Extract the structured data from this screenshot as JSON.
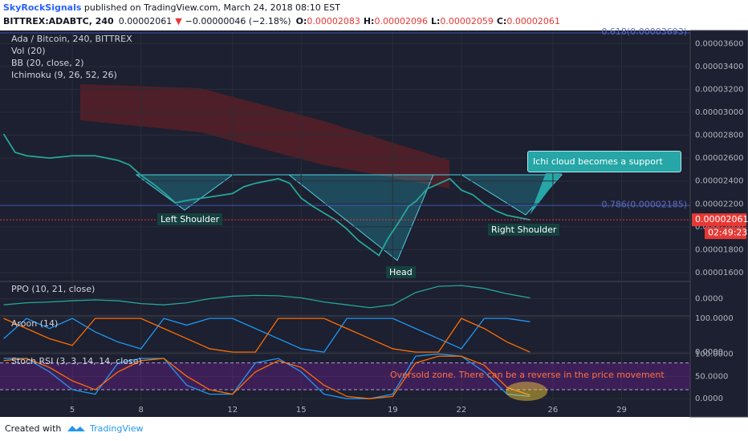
{
  "header": {
    "author": "SkyRockSignals",
    "published": " published on TradingView.com, March 24, 2018 08:10 EST",
    "symbol": "BITTREX:ADABTC, 240",
    "last": "0.00002061",
    "arrow": "▼",
    "change": "−0.00000046 (−2.18%)",
    "o_label": "O:",
    "o": "0.00002083",
    "h_label": "H:",
    "h": "0.00002096",
    "l_label": "L:",
    "l": "0.00002059",
    "c_label": "C:",
    "c": "0.00002061"
  },
  "chart_data": [
    {
      "type": "line",
      "title": "Ada / Bitcoin, 240, BITTREX",
      "indicators": [
        "Vol (20)",
        "BB (20, close, 2)",
        "Ichimoku (9, 26, 52, 26)"
      ],
      "x": [
        2,
        2.5,
        3,
        4,
        5,
        6,
        7,
        7.5,
        8,
        8.5,
        9,
        9.5,
        10,
        11,
        12,
        12.5,
        13,
        13.5,
        14,
        14.5,
        15,
        15.5,
        16,
        16.5,
        17,
        17.5,
        18.4,
        18.8,
        19.3,
        19.7,
        20,
        20.5,
        21.5,
        22,
        22.5,
        23,
        23.5,
        24,
        25
      ],
      "series": [
        {
          "color": "#26a69a",
          "values": [
            2.81e-05,
            2.65e-05,
            2.62e-05,
            2.6e-05,
            2.62e-05,
            2.62e-05,
            2.58e-05,
            2.54e-05,
            2.45e-05,
            2.38e-05,
            2.3e-05,
            2.21e-05,
            2.23e-05,
            2.26e-05,
            2.29e-05,
            2.35e-05,
            2.38e-05,
            2.4e-05,
            2.42e-05,
            2.38e-05,
            2.25e-05,
            2.18e-05,
            2.12e-05,
            2.06e-05,
            1.98e-05,
            1.88e-05,
            1.75e-05,
            1.9e-05,
            2.05e-05,
            2.18e-05,
            2.22e-05,
            2.33e-05,
            2.42e-05,
            2.32e-05,
            2.28e-05,
            2.2e-05,
            2.14e-05,
            2.1e-05,
            2.061e-05
          ]
        }
      ],
      "xlim": [
        1.84,
        32
      ],
      "xticks": [
        5,
        8,
        12,
        15,
        19,
        22,
        26,
        29
      ],
      "ylim": [
        1.53e-05,
        3.7e-05
      ],
      "yticks": [
        {
          "value": 1.6e-05,
          "label": "0.00001600"
        },
        {
          "value": 1.8e-05,
          "label": "0.00001800"
        },
        {
          "value": 2e-05,
          "label": "0.00002000"
        },
        {
          "value": 2.2e-05,
          "label": "0.00002200"
        },
        {
          "value": 2.4e-05,
          "label": "0.00002400"
        },
        {
          "value": 2.6e-05,
          "label": "0.00002600"
        },
        {
          "value": 2.8e-05,
          "label": "0.00002800"
        },
        {
          "value": 3e-05,
          "label": "0.00003000"
        },
        {
          "value": 3.2e-05,
          "label": "0.00003200"
        },
        {
          "value": 3.4e-05,
          "label": "0.00003400"
        },
        {
          "value": 3.6e-05,
          "label": "0.00003600"
        }
      ],
      "fib_levels": [
        {
          "value": 2.185e-05,
          "label": "0.786(0.00002185)"
        },
        {
          "value": 3.693e-05,
          "label": "0.618(0.00003693)"
        }
      ],
      "last_price": {
        "value": 2.061e-05,
        "label": "0.00002061"
      },
      "countdown": "02:49:23",
      "annotations": [
        "Left Shoulder",
        "Head",
        "Right Shoulder",
        "Ichi cloud becomes a support"
      ],
      "grid": true
    },
    {
      "type": "line",
      "title": "PPO (10, 21, close)",
      "x": [
        2,
        3,
        4,
        5,
        6,
        7,
        8,
        9,
        10,
        11,
        12,
        13,
        14,
        15,
        16,
        17,
        18,
        19,
        20,
        21,
        22,
        23,
        24,
        25
      ],
      "series": [
        {
          "color": "#26a69a",
          "values": [
            -1.5,
            -1,
            -0.8,
            -0.5,
            -0.3,
            -0.5,
            -1.2,
            -1.5,
            -1,
            0,
            0.6,
            0.8,
            0.7,
            0.2,
            -0.8,
            -1.5,
            -2.2,
            -1.5,
            1.5,
            3,
            3.2,
            2.5,
            1.2,
            0.2
          ]
        }
      ],
      "ylim": [
        -4,
        4
      ],
      "yticks": [
        {
          "value": 0,
          "label": "0.0000"
        }
      ]
    },
    {
      "type": "line",
      "title": "Aroon (14)",
      "x": [
        2,
        3,
        4,
        5,
        6,
        7,
        8,
        9,
        10,
        11,
        12,
        13,
        14,
        15,
        16,
        17,
        18,
        19,
        20,
        21,
        22,
        23,
        24,
        25
      ],
      "series": [
        {
          "color": "#2196f3",
          "values": [
            40,
            100,
            70,
            100,
            60,
            30,
            10,
            100,
            80,
            100,
            100,
            70,
            40,
            10,
            0,
            100,
            100,
            100,
            70,
            40,
            10,
            100,
            100,
            90
          ]
        },
        {
          "color": "#ff6d00",
          "values": [
            100,
            70,
            40,
            20,
            100,
            100,
            100,
            70,
            40,
            10,
            0,
            0,
            100,
            100,
            100,
            70,
            40,
            10,
            0,
            0,
            100,
            70,
            30,
            0
          ]
        }
      ],
      "ylim": [
        -2,
        105
      ],
      "yticks": [
        {
          "value": 0,
          "label": "0.0000"
        },
        {
          "value": 100,
          "label": "100.0000"
        }
      ]
    },
    {
      "type": "line",
      "title": "Stoch RSI (3, 3, 14, 14, close)",
      "x": [
        2,
        3,
        4,
        5,
        6,
        7,
        8,
        9,
        10,
        11,
        12,
        13,
        14,
        15,
        16,
        17,
        18,
        19,
        20,
        21,
        22,
        23,
        24,
        25
      ],
      "series": [
        {
          "color": "#2196f3",
          "values": [
            90,
            90,
            60,
            20,
            10,
            80,
            90,
            90,
            30,
            10,
            10,
            80,
            90,
            60,
            10,
            0,
            0,
            10,
            95,
            100,
            95,
            60,
            10,
            5
          ]
        },
        {
          "color": "#ff6d00",
          "values": [
            85,
            90,
            70,
            40,
            20,
            60,
            85,
            90,
            50,
            20,
            10,
            60,
            85,
            70,
            30,
            5,
            0,
            5,
            80,
            95,
            95,
            75,
            25,
            8
          ]
        }
      ],
      "bands": [
        20,
        80
      ],
      "ylim": [
        -14,
        99
      ],
      "yticks": [
        {
          "value": 0,
          "label": "0.0000"
        },
        {
          "value": 50,
          "label": "50.0000"
        },
        {
          "value": 100,
          "label": "100.0000"
        }
      ],
      "annotation": "Oversold zone. There can be a reverse in the price movement"
    }
  ],
  "footer": {
    "created": "Created with",
    "brand": "TradingView"
  }
}
